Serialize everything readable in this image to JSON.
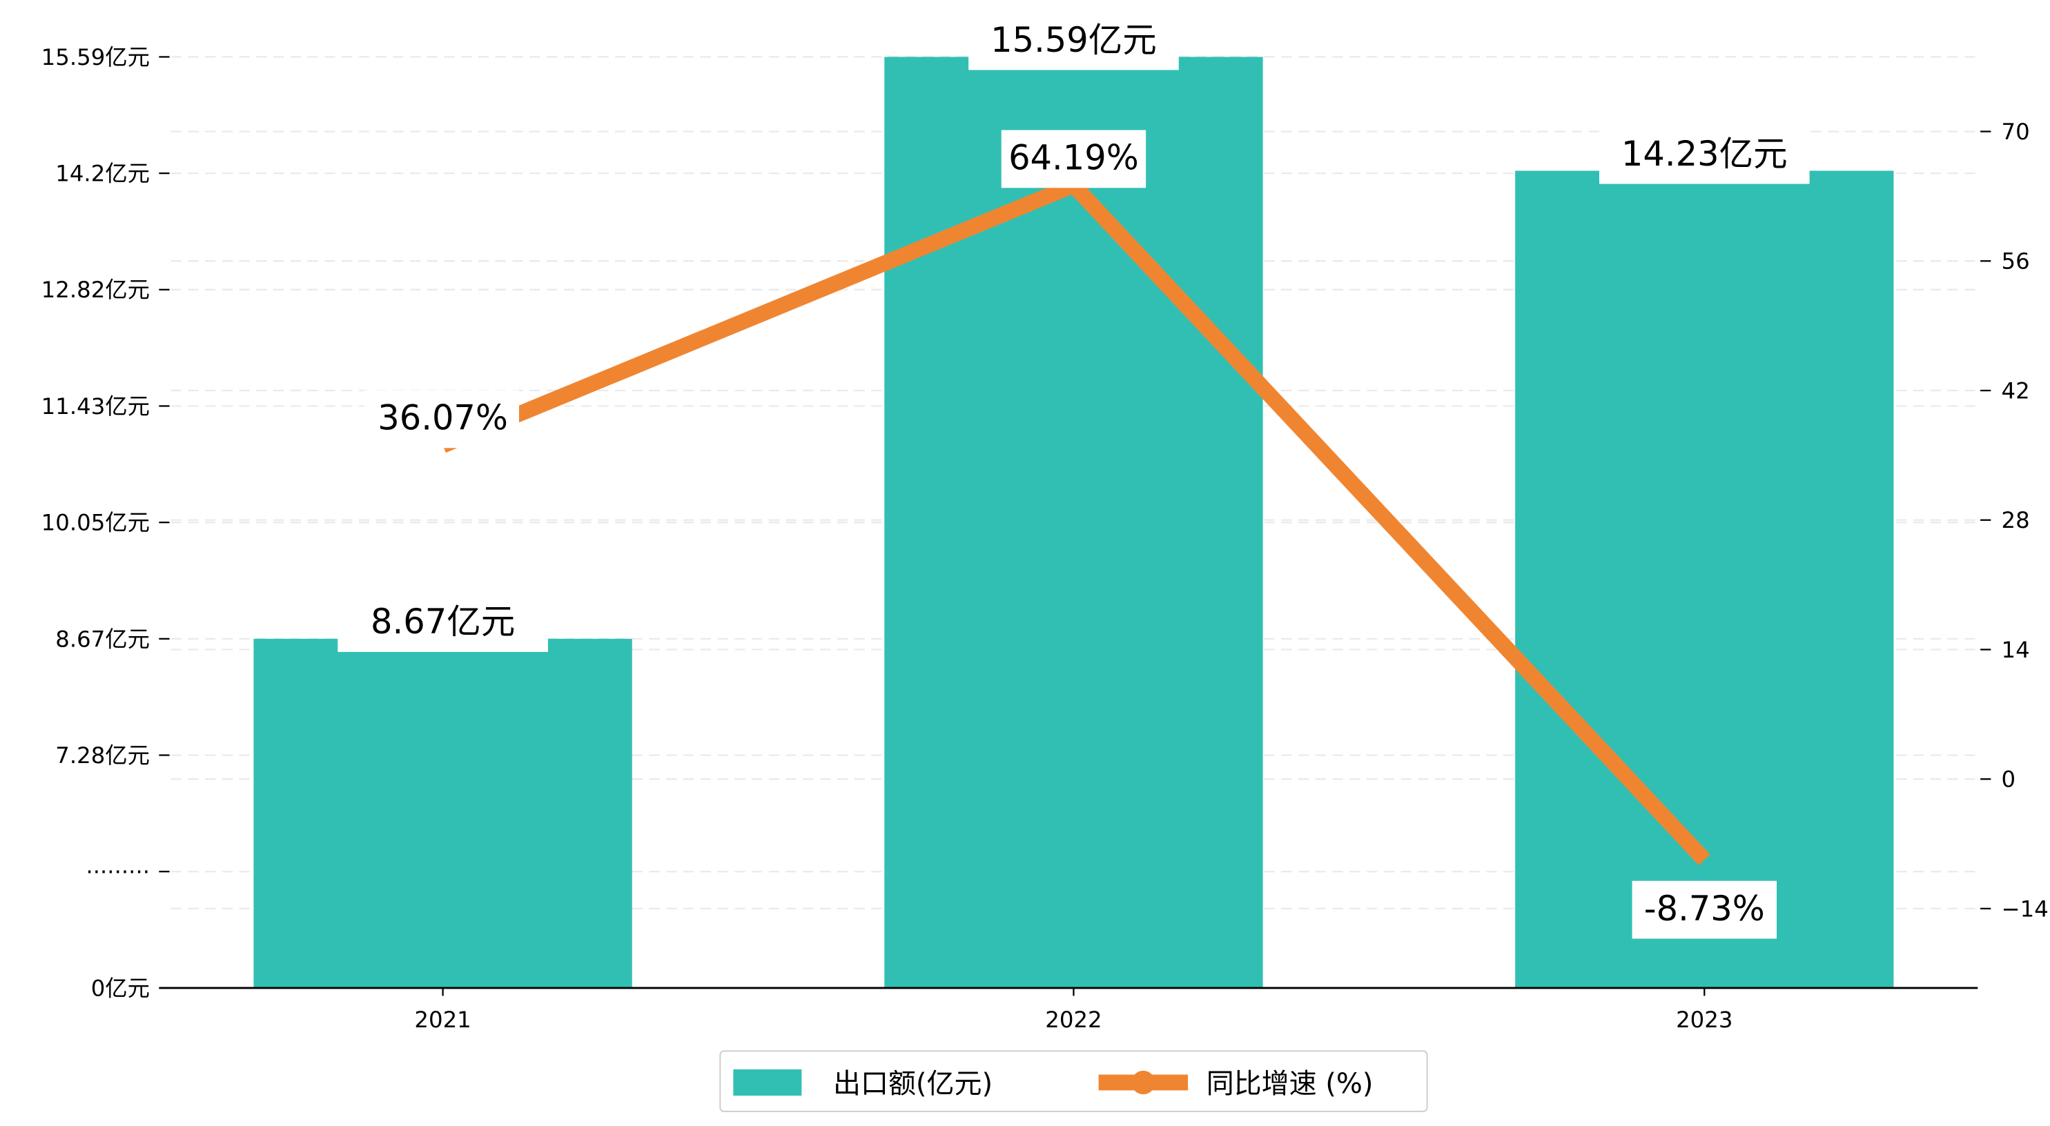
{
  "chart_data": {
    "type": "bar+line",
    "categories": [
      "2021",
      "2022",
      "2023"
    ],
    "series": [
      {
        "name": "出口额(亿元)",
        "type": "bar",
        "axis": "left",
        "values": [
          8.67,
          15.59,
          14.23
        ],
        "labels": [
          "8.67亿元",
          "15.59亿元",
          "14.23亿元"
        ],
        "color": "#32bfb3"
      },
      {
        "name": "同比增速 (%)",
        "type": "line",
        "axis": "right",
        "values": [
          36.07,
          64.19,
          -8.73
        ],
        "labels": [
          "36.07%",
          "64.19%",
          "-8.73%"
        ],
        "color": "#f08531"
      }
    ],
    "left_axis": {
      "ticks": [
        0,
        null,
        7.28,
        8.67,
        10.05,
        11.43,
        12.82,
        14.2,
        15.59
      ],
      "tick_labels": [
        "0亿元",
        "·········",
        "7.28亿元",
        "8.67亿元",
        "10.05亿元",
        "11.43亿元",
        "12.82亿元",
        "14.2亿元",
        "15.59亿元"
      ]
    },
    "right_axis": {
      "ticks": [
        -14,
        0,
        14,
        28,
        42,
        56,
        70
      ],
      "tick_labels": [
        "−14",
        "0",
        "14",
        "28",
        "42",
        "56",
        "70"
      ],
      "ylim": [
        -22.5,
        91
      ]
    },
    "grid": true,
    "legend": {
      "placement": "bottom-center",
      "entries": [
        "出口额(亿元)",
        "同比增速 (%)"
      ]
    }
  }
}
